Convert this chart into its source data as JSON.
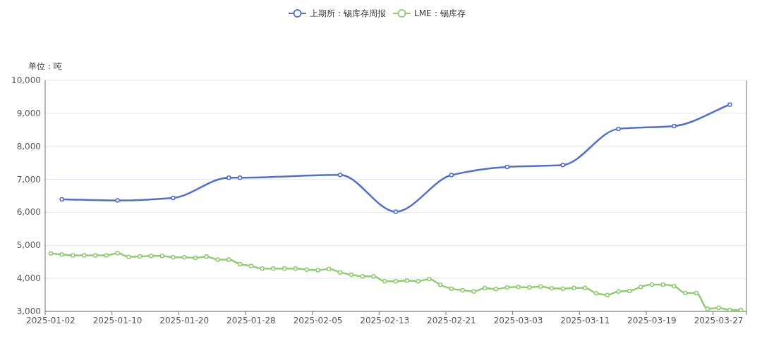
{
  "chart_data": {
    "type": "line",
    "ylabel": "单位：吨",
    "categories": [
      "2025-01-02",
      null,
      null,
      null,
      null,
      null,
      "2025-01-10",
      null,
      null,
      null,
      null,
      null,
      "2025-01-20",
      null,
      null,
      null,
      null,
      null,
      "2025-01-28",
      null,
      null,
      null,
      null,
      null,
      "2025-02-05",
      null,
      null,
      null,
      null,
      null,
      "2025-02-13",
      null,
      null,
      null,
      null,
      null,
      "2025-02-21",
      null,
      null,
      null,
      null,
      null,
      "2025-03-03",
      null,
      null,
      null,
      null,
      null,
      "2025-03-11",
      null,
      null,
      null,
      null,
      null,
      "2025-03-19",
      null,
      null,
      null,
      null,
      null,
      "2025-03-27",
      null,
      null
    ],
    "series": [
      {
        "name": "上期所：锡库存周报",
        "color": "#5470c6",
        "values": [
          null,
          6395,
          null,
          null,
          null,
          null,
          6360,
          null,
          null,
          null,
          null,
          6438,
          null,
          null,
          null,
          null,
          7050,
          7050,
          null,
          null,
          null,
          null,
          null,
          null,
          null,
          null,
          7135,
          null,
          null,
          null,
          null,
          6020,
          null,
          null,
          null,
          null,
          7128,
          null,
          null,
          null,
          null,
          7377,
          null,
          null,
          null,
          null,
          7434,
          null,
          null,
          null,
          null,
          8530,
          null,
          null,
          null,
          null,
          8615,
          null,
          null,
          null,
          null,
          9263,
          null
        ]
      },
      {
        "name": "LME：锡库存",
        "color": "#91cc75",
        "values": [
          4758,
          4722,
          4694,
          4694,
          4694,
          4694,
          4765,
          4651,
          4665,
          4680,
          4680,
          4637,
          4637,
          4623,
          4658,
          4566,
          4566,
          4431,
          4375,
          4295,
          4295,
          4295,
          4295,
          4267,
          4246,
          4288,
          4181,
          4110,
          4060,
          4060,
          3911,
          3911,
          3932,
          3911,
          3982,
          3804,
          3690,
          3641,
          3605,
          3705,
          3676,
          3726,
          3740,
          3726,
          3754,
          3698,
          3690,
          3712,
          3712,
          3548,
          3498,
          3605,
          3619,
          3740,
          3811,
          3811,
          3762,
          3555,
          3555,
          3078,
          3107,
          3043,
          3043
        ]
      }
    ],
    "ylim": [
      3000,
      10000
    ],
    "yticks": [
      {
        "value": 3000,
        "label": "3,000"
      },
      {
        "value": 4000,
        "label": "4,000"
      },
      {
        "value": 5000,
        "label": "5,000"
      },
      {
        "value": 6000,
        "label": "6,000"
      },
      {
        "value": 7000,
        "label": "7,000"
      },
      {
        "value": 8000,
        "label": "8,000"
      },
      {
        "value": 9000,
        "label": "9,000"
      },
      {
        "value": 10000,
        "label": "10,000"
      }
    ],
    "grid": "y",
    "legend": "top",
    "marker": "circle",
    "line_style": "solid"
  }
}
